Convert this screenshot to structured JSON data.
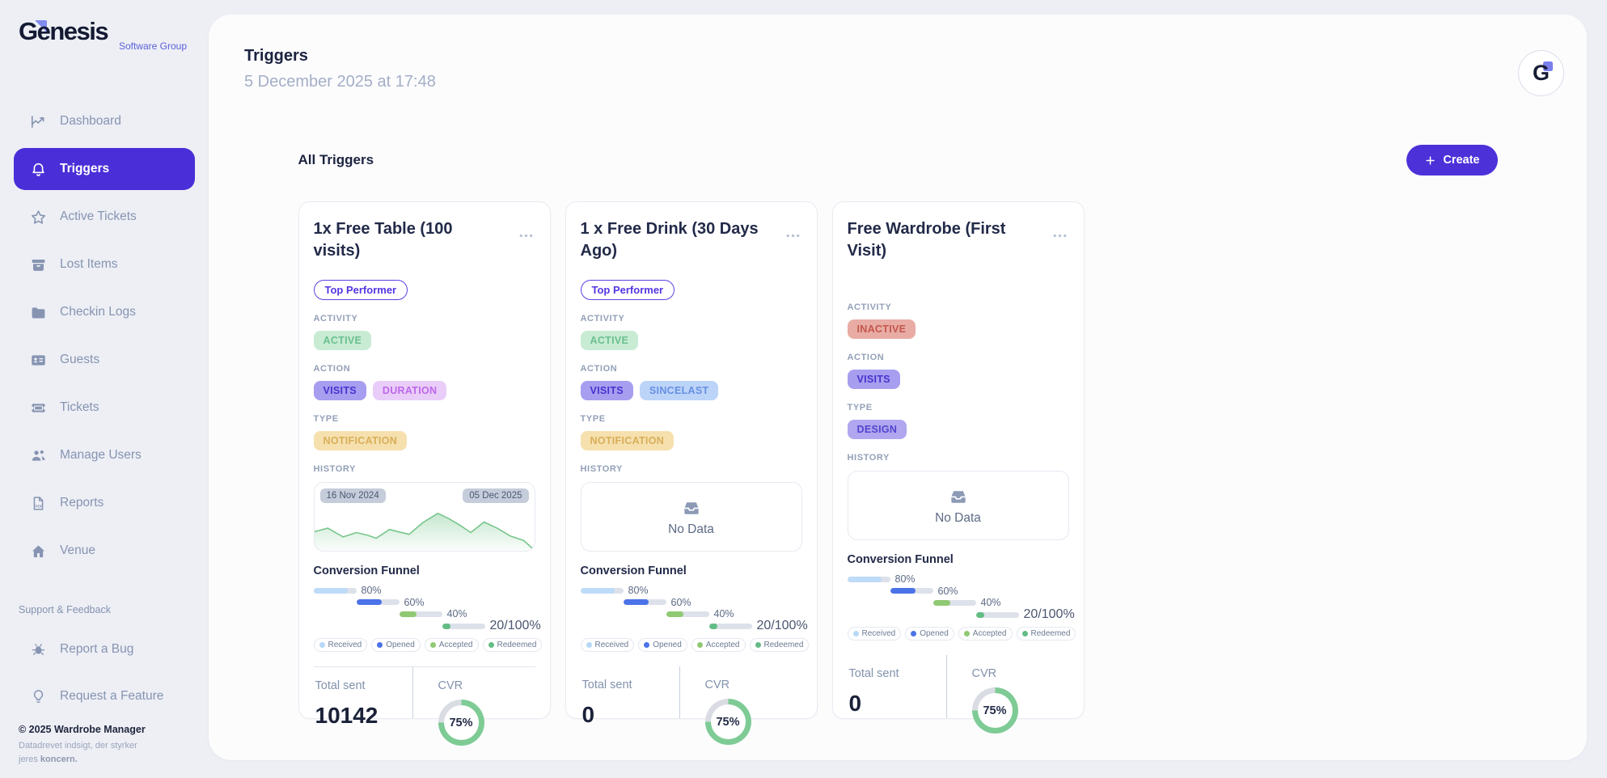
{
  "brand": {
    "name": "Genesis",
    "sub": "Software Group",
    "initial": "G"
  },
  "colors": {
    "accent": "#4c31d9",
    "active_nav_bg": "#4a2ed7",
    "ring_fill": "#7ecb95",
    "ring_track": "#d9dce3",
    "chart_line": "#77c68b"
  },
  "sidebar": {
    "items": [
      {
        "label": "Dashboard",
        "icon": "chart",
        "active": false
      },
      {
        "label": "Triggers",
        "icon": "bell",
        "active": true
      },
      {
        "label": "Active Tickets",
        "icon": "star",
        "active": false
      },
      {
        "label": "Lost Items",
        "icon": "archive",
        "active": false
      },
      {
        "label": "Checkin Logs",
        "icon": "folder",
        "active": false
      },
      {
        "label": "Guests",
        "icon": "idcard",
        "active": false
      },
      {
        "label": "Tickets",
        "icon": "ticket",
        "active": false
      },
      {
        "label": "Manage Users",
        "icon": "users",
        "active": false
      },
      {
        "label": "Reports",
        "icon": "report",
        "active": false
      },
      {
        "label": "Venue",
        "icon": "home",
        "active": false
      }
    ],
    "support_label": "Support & Feedback",
    "support_items": [
      {
        "label": "Report a Bug",
        "icon": "bug"
      },
      {
        "label": "Request a Feature",
        "icon": "bulb"
      }
    ],
    "copyright": "© 2025 Wardrobe Manager",
    "tagline": {
      "text": "Datadrevet indsigt, der styrker jeres",
      "bold": "koncern."
    }
  },
  "header": {
    "title": "Triggers",
    "subtitle": "5 December 2025 at 17:48"
  },
  "toolbar": {
    "section_title": "All Triggers",
    "create_label": "Create"
  },
  "labels": {
    "activity": "ACTIVITY",
    "action": "ACTION",
    "type": "TYPE",
    "history": "HISTORY"
  },
  "funnel": {
    "title": "Conversion Funnel",
    "rows": [
      {
        "label": "80%",
        "value": 80,
        "color": "#bedbf7"
      },
      {
        "label": "60%",
        "value": 60,
        "color": "#4b72e8"
      },
      {
        "label": "40%",
        "value": 40,
        "color": "#90c973"
      },
      {
        "label": "20/100%",
        "value": 20,
        "color": "#63bc84"
      }
    ],
    "legend": [
      {
        "label": "Received",
        "color": "#b7d9f7"
      },
      {
        "label": "Opened",
        "color": "#4b72e8"
      },
      {
        "label": "Accepted",
        "color": "#90c973"
      },
      {
        "label": "Redeemed",
        "color": "#63bc84"
      }
    ]
  },
  "cards": [
    {
      "title": "1x Free Table (100 visits)",
      "top_performer": "Top Performer",
      "activity": {
        "text": "ACTIVE",
        "bg": "#c8ebd4",
        "color": "#6bc08e"
      },
      "action_badges": [
        {
          "text": "VISITS",
          "bg": "#a89ef0",
          "color": "#4634cd"
        },
        {
          "text": "DURATION",
          "bg": "#e9cdf8",
          "color": "#bd67eb"
        }
      ],
      "type_badges": [
        {
          "text": "NOTIFICATION",
          "bg": "#f5e0ae",
          "color": "#d9ae58"
        }
      ],
      "history": {
        "kind": "chart",
        "start_date": "16 Nov 2024",
        "end_date": "05 Dec 2025"
      },
      "stats": {
        "sent_label": "Total sent",
        "sent_value": "10142",
        "cvr_label": "CVR",
        "cvr_value": "75%",
        "cvr_pct": 75
      },
      "footer_divider": true
    },
    {
      "title": "1 x Free Drink (30 Days Ago)",
      "top_performer": "Top Performer",
      "activity": {
        "text": "ACTIVE",
        "bg": "#c8ebd4",
        "color": "#6bc08e"
      },
      "action_badges": [
        {
          "text": "VISITS",
          "bg": "#a89ef0",
          "color": "#4634cd"
        },
        {
          "text": "SINCELAST",
          "bg": "#bdd4f9",
          "color": "#6590e2"
        }
      ],
      "type_badges": [
        {
          "text": "NOTIFICATION",
          "bg": "#f5e0ae",
          "color": "#d9ae58"
        }
      ],
      "history": {
        "kind": "empty",
        "text": "No Data"
      },
      "stats": {
        "sent_label": "Total sent",
        "sent_value": "0",
        "cvr_label": "CVR",
        "cvr_value": "75%",
        "cvr_pct": 75
      },
      "footer_divider": false
    },
    {
      "title": "Free Wardrobe (First Visit)",
      "top_performer": null,
      "activity": {
        "text": "INACTIVE",
        "bg": "#e8aca5",
        "color": "#c3564b"
      },
      "action_badges": [
        {
          "text": "VISITS",
          "bg": "#a89ef0",
          "color": "#4634cd"
        }
      ],
      "type_badges": [
        {
          "text": "DESIGN",
          "bg": "#b0a7f0",
          "color": "#5244ce"
        }
      ],
      "history": {
        "kind": "empty",
        "text": "No Data"
      },
      "stats": {
        "sent_label": "Total sent",
        "sent_value": "0",
        "cvr_label": "CVR",
        "cvr_value": "75%",
        "cvr_pct": 75
      },
      "footer_divider": false
    }
  ],
  "chart_data": [
    {
      "type": "area",
      "title": "History — 1x Free Table (100 visits)",
      "x_range": [
        "16 Nov 2024",
        "05 Dec 2025"
      ],
      "ylim": [
        0,
        100
      ],
      "grid": false,
      "points": [
        [
          0,
          40
        ],
        [
          6,
          48
        ],
        [
          13,
          28
        ],
        [
          19,
          38
        ],
        [
          24,
          32
        ],
        [
          28,
          25
        ],
        [
          34,
          45
        ],
        [
          38,
          40
        ],
        [
          43,
          34
        ],
        [
          49,
          60
        ],
        [
          56,
          82
        ],
        [
          61,
          70
        ],
        [
          66,
          55
        ],
        [
          71,
          38
        ],
        [
          77,
          62
        ],
        [
          83,
          48
        ],
        [
          89,
          30
        ],
        [
          95,
          20
        ],
        [
          99,
          2
        ]
      ]
    },
    {
      "type": "bar",
      "title": "Conversion Funnel",
      "categories": [
        "Received",
        "Opened",
        "Accepted",
        "Redeemed"
      ],
      "values": [
        80,
        60,
        40,
        20
      ],
      "labels": [
        "80%",
        "60%",
        "40%",
        "20/100%"
      ]
    },
    {
      "type": "pie",
      "title": "CVR",
      "labels": [
        "converted",
        "remainder"
      ],
      "values": [
        75,
        25
      ]
    }
  ]
}
